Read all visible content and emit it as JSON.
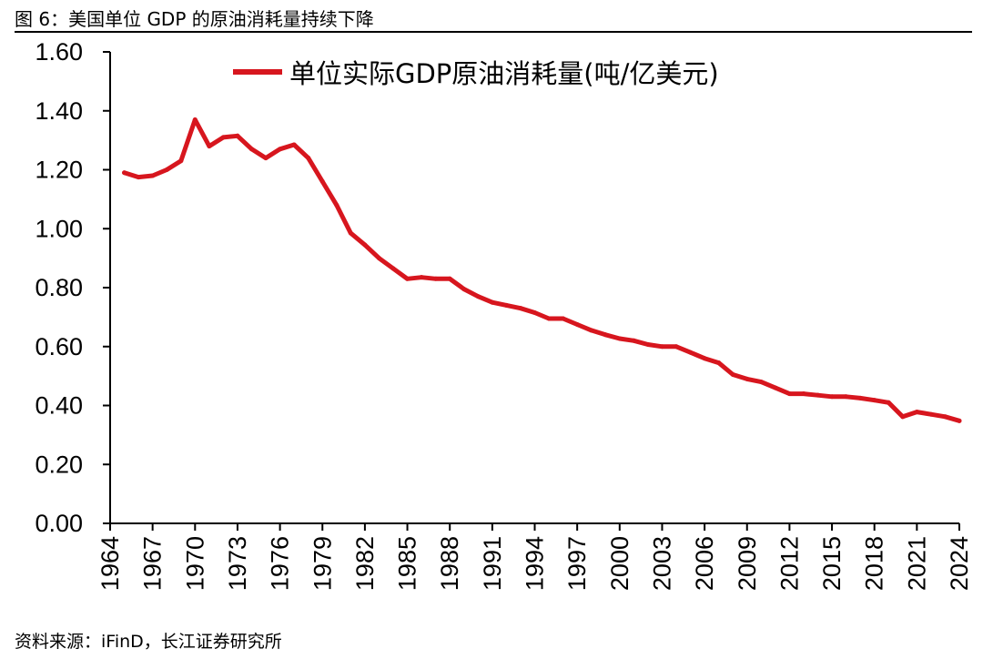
{
  "figure": {
    "title": "图 6：美国单位 GDP 的原油消耗量持续下降",
    "source": "资料来源：iFinD，长江证券研究所"
  },
  "colors": {
    "series": "#d7161e",
    "axis": "#000000"
  },
  "chart_data": {
    "type": "line",
    "title": "",
    "xlabel": "",
    "ylabel": "",
    "ylim": [
      0,
      1.6
    ],
    "y_ticks": [
      "0.00",
      "0.20",
      "0.40",
      "0.60",
      "0.80",
      "1.00",
      "1.20",
      "1.40",
      "1.60"
    ],
    "x_tick_labels": [
      "1964",
      "1967",
      "1970",
      "1973",
      "1976",
      "1979",
      "1982",
      "1985",
      "1988",
      "1991",
      "1994",
      "1997",
      "2000",
      "2003",
      "2006",
      "2009",
      "2012",
      "2015",
      "2018",
      "2021",
      "2024"
    ],
    "legend": "单位实际GDP原油消耗量(吨/亿美元)",
    "legend_position": "top-center",
    "x": [
      1965,
      1966,
      1967,
      1968,
      1969,
      1970,
      1971,
      1972,
      1973,
      1974,
      1975,
      1976,
      1977,
      1978,
      1979,
      1980,
      1981,
      1982,
      1983,
      1984,
      1985,
      1986,
      1987,
      1988,
      1989,
      1990,
      1991,
      1992,
      1993,
      1994,
      1995,
      1996,
      1997,
      1998,
      1999,
      2000,
      2001,
      2002,
      2003,
      2004,
      2005,
      2006,
      2007,
      2008,
      2009,
      2010,
      2011,
      2012,
      2013,
      2014,
      2015,
      2016,
      2017,
      2018,
      2019,
      2020,
      2021,
      2022,
      2023,
      2024
    ],
    "series": [
      {
        "name": "单位实际GDP原油消耗量(吨/亿美元)",
        "values": [
          1.19,
          1.175,
          1.18,
          1.2,
          1.23,
          1.37,
          1.28,
          1.31,
          1.315,
          1.27,
          1.24,
          1.27,
          1.285,
          1.24,
          1.16,
          1.08,
          0.985,
          0.945,
          0.9,
          0.865,
          0.83,
          0.835,
          0.83,
          0.83,
          0.795,
          0.77,
          0.75,
          0.74,
          0.73,
          0.715,
          0.695,
          0.695,
          0.675,
          0.655,
          0.64,
          0.627,
          0.62,
          0.607,
          0.6,
          0.6,
          0.58,
          0.56,
          0.545,
          0.505,
          0.49,
          0.48,
          0.46,
          0.44,
          0.44,
          0.435,
          0.43,
          0.43,
          0.425,
          0.418,
          0.41,
          0.362,
          0.378,
          0.37,
          0.362,
          0.348
        ]
      }
    ]
  }
}
